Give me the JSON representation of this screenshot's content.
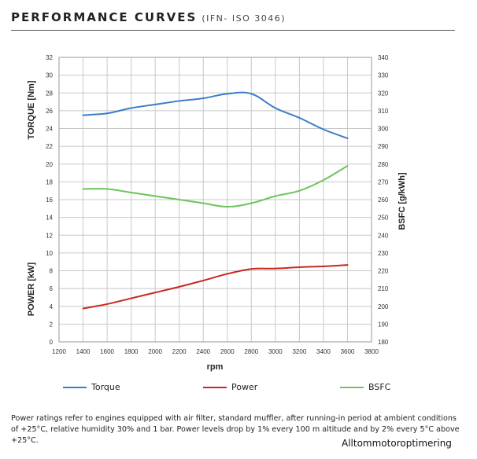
{
  "header": {
    "title": "PERFORMANCE CURVES",
    "subtitle": "(IFN- ISO 3046)"
  },
  "chart_data": {
    "type": "line",
    "x": [
      1400,
      1600,
      1800,
      2000,
      2200,
      2400,
      2600,
      2800,
      3000,
      3200,
      3400,
      3600
    ],
    "xlabel": "rpm",
    "xlim": [
      1200,
      3800
    ],
    "xticks": [
      1200,
      1400,
      1600,
      1800,
      2000,
      2200,
      2400,
      2600,
      2800,
      3000,
      3200,
      3400,
      3600,
      3800
    ],
    "left_axis": {
      "ylim": [
        0,
        32
      ],
      "yticks": [
        0,
        2,
        4,
        6,
        8,
        10,
        12,
        14,
        16,
        18,
        20,
        22,
        24,
        26,
        28,
        30,
        32
      ],
      "labels": [
        "TORQUE [Nm]",
        "POWER [kW]"
      ]
    },
    "right_axis": {
      "ylabel": "BSFC  [g/kWh]",
      "ylim": [
        180,
        340
      ],
      "yticks": [
        180,
        190,
        200,
        210,
        220,
        230,
        240,
        250,
        260,
        270,
        280,
        290,
        300,
        310,
        320,
        330,
        340
      ]
    },
    "grid": true,
    "series": [
      {
        "name": "Torque",
        "axis": "left",
        "color": "#3a7dc9",
        "values": [
          25.5,
          25.7,
          26.3,
          26.7,
          27.1,
          27.4,
          27.9,
          27.9,
          26.3,
          25.2,
          23.9,
          22.9
        ]
      },
      {
        "name": "Power",
        "axis": "left",
        "color": "#c8281e",
        "values": [
          3.75,
          4.25,
          4.9,
          5.55,
          6.2,
          6.9,
          7.65,
          8.2,
          8.25,
          8.4,
          8.5,
          8.65
        ]
      },
      {
        "name": "BSFC",
        "axis": "right",
        "color": "#6cc45a",
        "values": [
          266,
          266,
          264,
          262,
          260,
          258,
          256,
          258,
          262,
          265,
          271,
          279
        ]
      }
    ],
    "legend_position": "bottom"
  },
  "footnote": "Power ratings refer to engines equipped with air filter, standard muffler, after running-in period at ambient conditions of +25°C, relative humidity 30% and 1 bar. Power levels drop by 1% every 100 m altitude and by 2% every 5°C above +25°C.",
  "watermark": "Alltommotoroptimering"
}
